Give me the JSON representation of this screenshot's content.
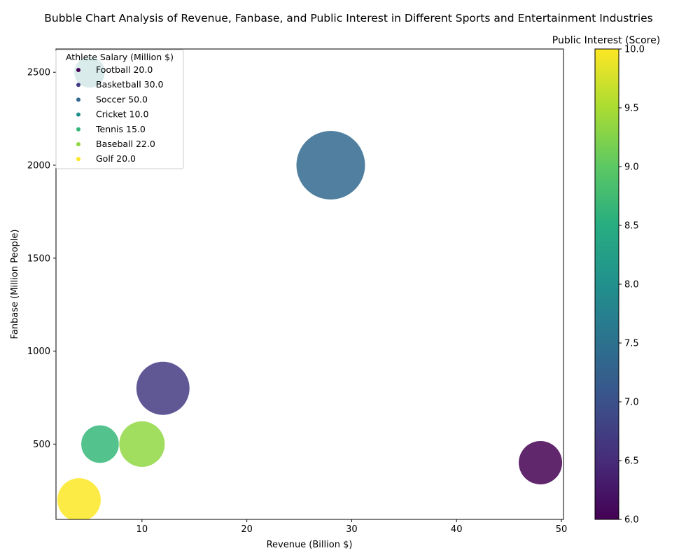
{
  "chart_data": {
    "type": "scatter",
    "title": "Bubble Chart Analysis of Revenue, Fanbase, and Public Interest in Different Sports and Entertainment Industries",
    "xlabel": "Revenue (Billion $)",
    "ylabel": "Fanbase (Million People)",
    "colorbar_label": "Public Interest (Score)",
    "legend_title": "Athlete Salary (Million $)",
    "legend_location": "top-left",
    "xlim": [
      1.8,
      50.2
    ],
    "ylim": [
      95,
      2625
    ],
    "x_ticks": [
      10,
      20,
      30,
      40,
      50
    ],
    "y_ticks": [
      500,
      1000,
      1500,
      2000,
      2500
    ],
    "colorbar_range": [
      6.0,
      10.0
    ],
    "colorbar_ticks": [
      "6.0",
      "6.5",
      "7.0",
      "7.5",
      "8.0",
      "8.5",
      "9.0",
      "9.5",
      "10.0"
    ],
    "colormap": "viridis",
    "grid": false,
    "points": [
      {
        "label": "Football 20.0",
        "sport": "Football",
        "salary": 20.0,
        "revenue": 48,
        "fanbase": 400,
        "interest": 6.0,
        "color": "#440154"
      },
      {
        "label": "Basketball 30.0",
        "sport": "Basketball",
        "salary": 30.0,
        "revenue": 12,
        "fanbase": 800,
        "interest": 6.6,
        "color": "#443983"
      },
      {
        "label": "Soccer 50.0",
        "sport": "Soccer",
        "salary": 50.0,
        "revenue": 28,
        "fanbase": 2000,
        "interest": 7.3,
        "color": "#31688e"
      },
      {
        "label": "Cricket 10.0",
        "sport": "Cricket",
        "salary": 10.0,
        "revenue": 5,
        "fanbase": 2500,
        "interest": 8.0,
        "color": "#21918c"
      },
      {
        "label": "Tennis 15.0",
        "sport": "Tennis",
        "salary": 15.0,
        "revenue": 6,
        "fanbase": 500,
        "interest": 8.6,
        "color": "#35b779"
      },
      {
        "label": "Baseball 22.0",
        "sport": "Baseball",
        "salary": 22.0,
        "revenue": 10,
        "fanbase": 500,
        "interest": 9.3,
        "color": "#90d743"
      },
      {
        "label": "Golf 20.0",
        "sport": "Golf",
        "salary": 20.0,
        "revenue": 4,
        "fanbase": 200,
        "interest": 10.0,
        "color": "#fde725"
      }
    ]
  }
}
